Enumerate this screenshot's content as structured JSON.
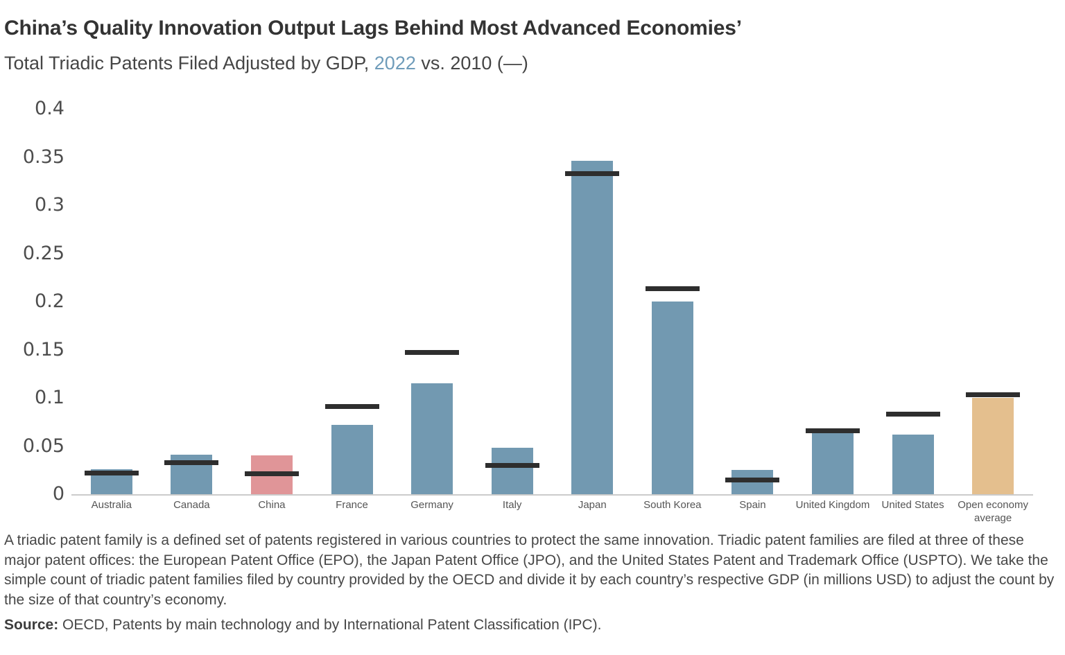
{
  "header": {
    "title": "China’s Quality Innovation Output Lags Behind Most Advanced Economies’",
    "subtitle_prefix": "Total Triadic Patents Filed Adjusted by GDP, ",
    "subtitle_year": "2022",
    "subtitle_suffix": " vs. 2010 (—)"
  },
  "chart_data": {
    "type": "bar",
    "title": "Total Triadic Patents Filed Adjusted by GDP, 2022 vs. 2010",
    "categories": [
      "Australia",
      "Canada",
      "China",
      "France",
      "Germany",
      "Italy",
      "Japan",
      "South Korea",
      "Spain",
      "United Kingdom",
      "United States",
      "Open economy average"
    ],
    "series": [
      {
        "name": "2022",
        "style": "bar",
        "values": [
          0.026,
          0.041,
          0.04,
          0.072,
          0.115,
          0.048,
          0.346,
          0.2,
          0.025,
          0.064,
          0.062,
          0.1
        ]
      },
      {
        "name": "2010",
        "style": "dash-marker",
        "values": [
          0.022,
          0.033,
          0.021,
          0.091,
          0.147,
          0.03,
          0.333,
          0.213,
          0.015,
          0.066,
          0.083,
          0.103
        ]
      }
    ],
    "bar_colors": [
      "#7299b1",
      "#7299b1",
      "#e09598",
      "#7299b1",
      "#7299b1",
      "#7299b1",
      "#7299b1",
      "#7299b1",
      "#7299b1",
      "#7299b1",
      "#7299b1",
      "#e4bf8e"
    ],
    "dash_color": "#2e2e2e",
    "y_tick_labels": [
      "0",
      "0.05",
      "0.1",
      "0.15",
      "0.2",
      "0.25",
      "0.3",
      "0.35",
      "0.4"
    ],
    "y_tick_values": [
      0,
      0.05,
      0.1,
      0.15,
      0.2,
      0.25,
      0.3,
      0.35,
      0.4
    ],
    "ylim": [
      0,
      0.4
    ],
    "xlabel": "",
    "ylabel": "",
    "grid": "off",
    "legend_position": "in-subtitle"
  },
  "notes": {
    "description": "A triadic patent family is a defined set of patents registered in various countries to protect the same innovation. Triadic patent families are filed at three of these major patent offices: the European Patent Office (EPO), the Japan Patent Office (JPO), and the United States Patent and Trademark Office (USPTO). We take the simple count of triadic patent families filed by country provided by the OECD and divide it by each country’s respective GDP (in millions USD) to adjust the count by the size of that country’s economy."
  },
  "source": {
    "label": "Source:",
    "text": " OECD, Patents by main technology and by International Patent Classification (IPC)."
  }
}
